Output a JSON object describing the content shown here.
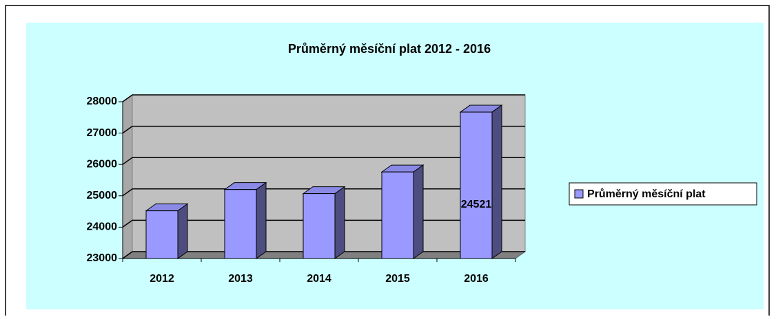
{
  "chart_data": {
    "type": "bar3d",
    "title": "Průměrný měsíční plat 2012 - 2016",
    "categories": [
      "2012",
      "2013",
      "2014",
      "2015",
      "2016"
    ],
    "series": [
      {
        "name": "Průměrný měsíční plat",
        "color": "#9999ff",
        "values": [
          24521,
          25200,
          25070,
          25760,
          27670
        ]
      }
    ],
    "value_labels": [
      "24521",
      null,
      null,
      null,
      null
    ],
    "ylim": [
      23000,
      28000
    ],
    "yticks": [
      23000,
      24000,
      25000,
      26000,
      27000,
      28000
    ],
    "grid": true,
    "legend": "right"
  }
}
